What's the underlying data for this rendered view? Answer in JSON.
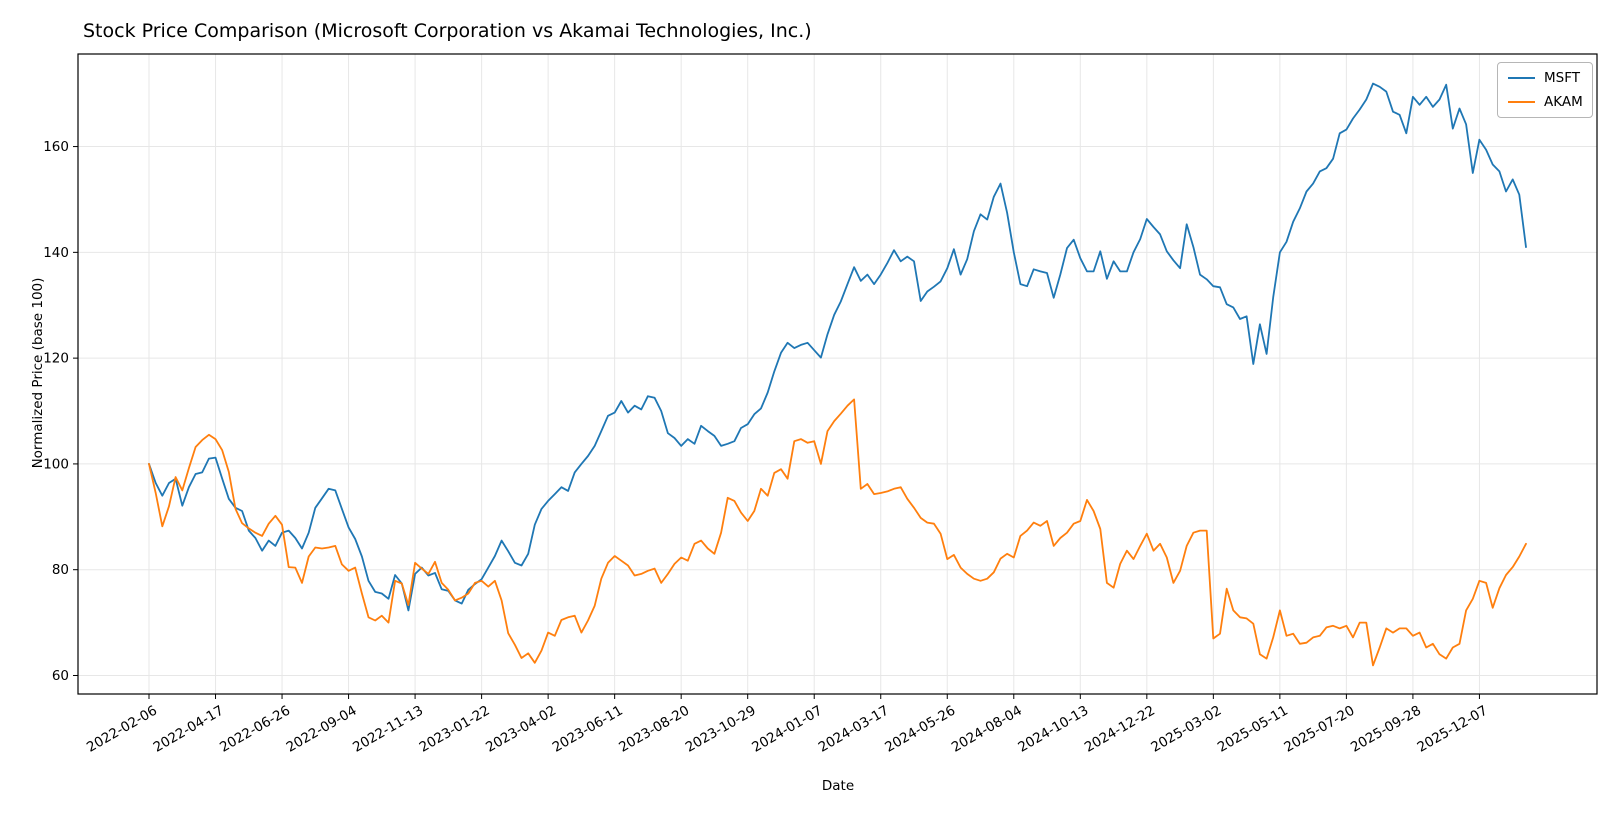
{
  "chart_data": {
    "type": "line",
    "title": "Stock Price Comparison (Microsoft Corporation vs Akamai Technologies, Inc.)",
    "xlabel": "Date",
    "ylabel": "Normalized Price (base 100)",
    "grid": true,
    "legend_position": "upper right",
    "x_start": "2022-02-06",
    "x_interval_days": 7,
    "x_tick_every": 10,
    "x_tick_labels": [
      "2022-02-06",
      "2022-04-17",
      "2022-06-26",
      "2022-09-04",
      "2022-11-13",
      "2023-01-22",
      "2023-04-02",
      "2023-06-11",
      "2023-08-20",
      "2023-10-29",
      "2024-01-07",
      "2024-03-17",
      "2024-05-26",
      "2024-08-04",
      "2024-10-13",
      "2024-12-22",
      "2025-03-02",
      "2025-05-11",
      "2025-07-20",
      "2025-09-28",
      "2025-12-07"
    ],
    "y_ticks": [
      60,
      80,
      100,
      120,
      140,
      160
    ],
    "ylim": [
      56.5,
      177.5
    ],
    "series": [
      {
        "name": "MSFT",
        "color": "#1f77b4",
        "values": [
          100.0,
          96.4,
          94.0,
          96.4,
          97.2,
          92.1,
          95.6,
          98.1,
          98.4,
          101.0,
          101.2,
          97.2,
          93.4,
          91.7,
          91.1,
          87.4,
          86.0,
          83.6,
          85.5,
          84.5,
          87.0,
          87.4,
          86.0,
          84.0,
          87.0,
          91.7,
          93.5,
          95.3,
          95.0,
          91.5,
          88.0,
          85.8,
          82.5,
          77.9,
          75.8,
          75.5,
          74.5,
          79.0,
          77.4,
          72.3,
          79.2,
          80.4,
          78.9,
          79.4,
          76.3,
          76.0,
          74.2,
          73.6,
          76.2,
          77.3,
          78.2,
          80.4,
          82.6,
          85.5,
          83.5,
          81.3,
          80.8,
          83.0,
          88.5,
          91.5,
          93.0,
          94.3,
          95.6,
          94.9,
          98.4,
          100.0,
          101.5,
          103.4,
          106.2,
          109.1,
          109.7,
          111.9,
          109.7,
          111.0,
          110.3,
          112.8,
          112.5,
          110.0,
          105.8,
          104.9,
          103.4,
          104.7,
          103.8,
          107.2,
          106.2,
          105.3,
          103.4,
          103.8,
          104.3,
          106.8,
          107.5,
          109.4,
          110.5,
          113.5,
          117.5,
          121.0,
          122.9,
          121.9,
          122.5,
          122.9,
          121.5,
          120.1,
          124.5,
          128.2,
          130.7,
          134.0,
          137.2,
          134.6,
          135.8,
          134.0,
          135.8,
          138.0,
          140.4,
          138.3,
          139.2,
          138.3,
          130.8,
          132.6,
          133.5,
          134.5,
          137.0,
          140.6,
          135.8,
          138.7,
          144.0,
          147.2,
          146.2,
          150.5,
          153.0,
          147.5,
          140.0,
          134.0,
          133.6,
          136.8,
          136.4,
          136.1,
          131.4,
          135.8,
          140.8,
          142.4,
          138.9,
          136.4,
          136.4,
          140.2,
          135.0,
          138.3,
          136.4,
          136.4,
          140.0,
          142.5,
          146.3,
          144.8,
          143.4,
          140.2,
          138.5,
          137.0,
          145.3,
          141.0,
          135.8,
          134.9,
          133.6,
          133.4,
          130.2,
          129.6,
          127.4,
          127.9,
          118.9,
          126.4,
          120.8,
          131.5,
          140.0,
          142.0,
          145.8,
          148.3,
          151.5,
          153.0,
          155.3,
          155.9,
          157.7,
          162.5,
          163.2,
          165.3,
          167.0,
          168.9,
          171.9,
          171.3,
          170.4,
          166.6,
          166.0,
          162.5,
          169.4,
          167.9,
          169.4,
          167.5,
          168.9,
          171.7,
          163.4,
          167.2,
          164.2,
          155.0,
          161.3,
          159.4,
          156.6,
          155.3,
          151.5,
          153.8,
          150.9,
          141.0
        ]
      },
      {
        "name": "AKAM",
        "color": "#ff7f0e",
        "values": [
          100.0,
          94.5,
          88.2,
          92.0,
          97.5,
          95.0,
          99.2,
          103.2,
          104.5,
          105.5,
          104.7,
          102.6,
          98.5,
          91.5,
          88.8,
          87.8,
          87.0,
          86.4,
          88.7,
          90.2,
          88.5,
          80.5,
          80.4,
          77.5,
          82.5,
          84.2,
          84.0,
          84.2,
          84.5,
          81.0,
          79.8,
          80.4,
          75.5,
          71.0,
          70.4,
          71.3,
          70.0,
          77.9,
          77.4,
          73.3,
          81.3,
          80.2,
          79.2,
          81.5,
          77.5,
          76.2,
          74.2,
          74.7,
          75.5,
          77.5,
          77.9,
          76.8,
          77.9,
          74.2,
          68.0,
          65.8,
          63.3,
          64.2,
          62.4,
          64.7,
          68.1,
          67.5,
          70.5,
          71.0,
          71.3,
          68.1,
          70.4,
          73.2,
          78.3,
          81.3,
          82.6,
          81.7,
          80.8,
          78.9,
          79.2,
          79.8,
          80.2,
          77.5,
          79.2,
          81.1,
          82.3,
          81.7,
          84.9,
          85.5,
          84.0,
          83.0,
          87.0,
          93.6,
          93.0,
          90.8,
          89.2,
          91.1,
          95.3,
          94.0,
          98.3,
          99.0,
          97.2,
          104.3,
          104.7,
          104.0,
          104.3,
          100.0,
          106.2,
          108.1,
          109.5,
          111.0,
          112.2,
          95.3,
          96.2,
          94.3,
          94.5,
          94.8,
          95.3,
          95.6,
          93.4,
          91.7,
          89.8,
          88.9,
          88.7,
          86.8,
          82.0,
          82.8,
          80.4,
          79.2,
          78.3,
          77.9,
          78.3,
          79.5,
          82.1,
          83.0,
          82.3,
          86.4,
          87.4,
          88.9,
          88.3,
          89.2,
          84.5,
          86.0,
          87.0,
          88.7,
          89.2,
          93.2,
          91.1,
          87.7,
          77.5,
          76.6,
          81.1,
          83.6,
          82.0,
          84.5,
          86.8,
          83.6,
          84.9,
          82.3,
          77.5,
          79.8,
          84.5,
          87.0,
          87.4,
          87.4,
          67.0,
          67.9,
          76.4,
          72.3,
          71.0,
          70.8,
          69.8,
          64.0,
          63.2,
          67.2,
          72.3,
          67.5,
          67.9,
          66.0,
          66.2,
          67.2,
          67.5,
          69.1,
          69.4,
          68.9,
          69.4,
          67.2,
          70.0,
          70.0,
          61.9,
          65.3,
          68.9,
          68.1,
          68.9,
          68.9,
          67.5,
          68.1,
          65.3,
          66.0,
          64.0,
          63.2,
          65.3,
          66.0,
          72.3,
          74.5,
          77.9,
          77.5,
          72.8,
          76.5,
          79.0,
          80.5,
          82.5,
          84.9
        ]
      }
    ]
  }
}
